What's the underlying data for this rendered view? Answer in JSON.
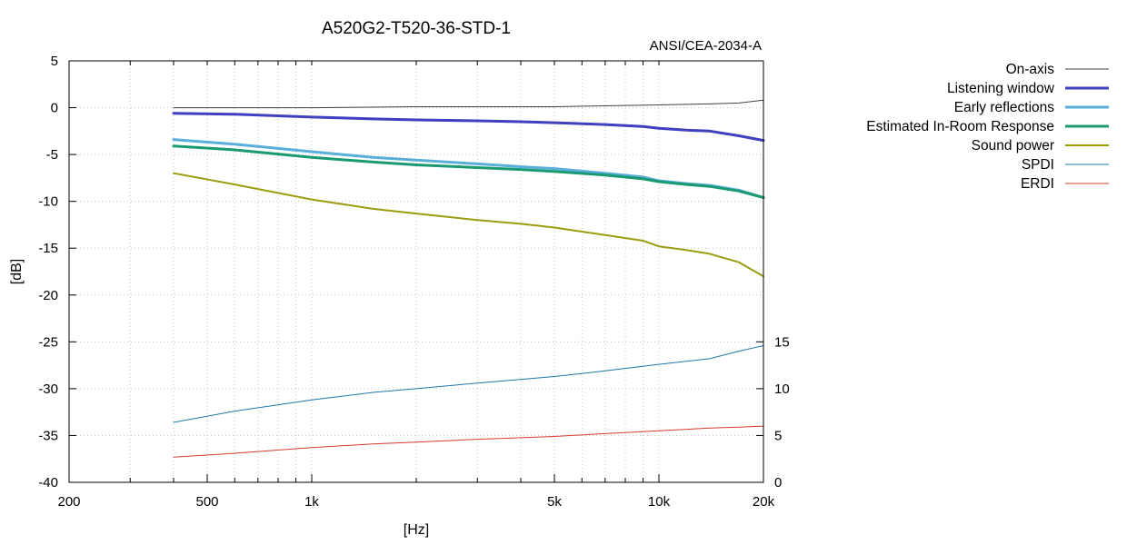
{
  "chart_data": {
    "type": "line",
    "title": "A520G2-T520-36-STD-1",
    "subtitle": "ANSI/CEA-2034-A",
    "xlabel": "[Hz]",
    "ylabel": "[dB]",
    "xscale": "log",
    "xlim": [
      200,
      20000
    ],
    "ylim": [
      -40,
      5
    ],
    "y2lim": [
      0,
      45
    ],
    "grid": true,
    "legend_position": "right",
    "x_ticks": [
      {
        "value": 200,
        "label": "200"
      },
      {
        "value": 500,
        "label": "500"
      },
      {
        "value": 1000,
        "label": "1k"
      },
      {
        "value": 5000,
        "label": "5k"
      },
      {
        "value": 10000,
        "label": "10k"
      },
      {
        "value": 20000,
        "label": "20k"
      }
    ],
    "y_ticks": [
      {
        "value": 5,
        "label": "5"
      },
      {
        "value": 0,
        "label": "0"
      },
      {
        "value": -5,
        "label": "-5"
      },
      {
        "value": -10,
        "label": "-10"
      },
      {
        "value": -15,
        "label": "-15"
      },
      {
        "value": -20,
        "label": "-20"
      },
      {
        "value": -25,
        "label": "-25"
      },
      {
        "value": -30,
        "label": "-30"
      },
      {
        "value": -35,
        "label": "-35"
      },
      {
        "value": -40,
        "label": "-40"
      }
    ],
    "y2_ticks": [
      {
        "value": 15,
        "label": "15"
      },
      {
        "value": 10,
        "label": "10"
      },
      {
        "value": 5,
        "label": "5"
      },
      {
        "value": 0,
        "label": "0"
      }
    ],
    "series": [
      {
        "name": "On-axis",
        "color": "#404040",
        "width": 1,
        "axis": "y",
        "x": [
          400,
          600,
          1000,
          2000,
          3000,
          5000,
          7000,
          10000,
          14000,
          17000,
          20000
        ],
        "y": [
          0.0,
          0.0,
          0.0,
          0.1,
          0.1,
          0.1,
          0.2,
          0.3,
          0.4,
          0.5,
          0.8
        ]
      },
      {
        "name": "Listening window",
        "color": "#3f3fbf",
        "width": 3,
        "axis": "y",
        "x": [
          400,
          600,
          1000,
          1500,
          2000,
          3000,
          4000,
          5000,
          7000,
          9000,
          10000,
          12000,
          14000,
          17000,
          20000
        ],
        "y": [
          -0.6,
          -0.7,
          -1.0,
          -1.2,
          -1.3,
          -1.4,
          -1.5,
          -1.6,
          -1.8,
          -2.0,
          -2.2,
          -2.4,
          -2.5,
          -3.0,
          -3.5
        ]
      },
      {
        "name": "Early reflections",
        "color": "#5aaedc",
        "width": 3,
        "axis": "y",
        "x": [
          400,
          600,
          1000,
          1500,
          2000,
          3000,
          4000,
          5000,
          7000,
          9000,
          10000,
          12000,
          14000,
          17000,
          20000
        ],
        "y": [
          -3.4,
          -3.9,
          -4.7,
          -5.3,
          -5.6,
          -6.0,
          -6.3,
          -6.5,
          -7.0,
          -7.4,
          -7.8,
          -8.1,
          -8.3,
          -8.8,
          -9.6
        ]
      },
      {
        "name": "Estimated In-Room Response",
        "color": "#1a9a73",
        "width": 3,
        "axis": "y",
        "x": [
          400,
          600,
          1000,
          1500,
          2000,
          3000,
          4000,
          5000,
          7000,
          9000,
          10000,
          12000,
          14000,
          17000,
          20000
        ],
        "y": [
          -4.1,
          -4.5,
          -5.3,
          -5.8,
          -6.1,
          -6.4,
          -6.6,
          -6.8,
          -7.2,
          -7.6,
          -7.9,
          -8.2,
          -8.4,
          -8.9,
          -9.6
        ]
      },
      {
        "name": "Sound power",
        "color": "#9c9c10",
        "width": 2,
        "axis": "y",
        "x": [
          400,
          600,
          1000,
          1500,
          2000,
          3000,
          4000,
          5000,
          7000,
          9000,
          10000,
          12000,
          14000,
          17000,
          20000
        ],
        "y": [
          -7.0,
          -8.2,
          -9.8,
          -10.8,
          -11.3,
          -12.0,
          -12.4,
          -12.8,
          -13.6,
          -14.2,
          -14.8,
          -15.2,
          -15.6,
          -16.5,
          -18.0
        ]
      },
      {
        "name": "SPDI",
        "color": "#1f78a8",
        "width": 1,
        "axis": "y2",
        "x": [
          400,
          600,
          1000,
          1500,
          2000,
          3000,
          5000,
          7000,
          10000,
          14000,
          17000,
          20000
        ],
        "y": [
          6.4,
          7.6,
          8.8,
          9.6,
          10.0,
          10.6,
          11.3,
          11.9,
          12.6,
          13.2,
          14.0,
          14.6
        ]
      },
      {
        "name": "ERDI",
        "color": "#d83a2e",
        "width": 1,
        "axis": "y2",
        "x": [
          400,
          600,
          1000,
          1500,
          2000,
          3000,
          5000,
          7000,
          10000,
          14000,
          17000,
          20000
        ],
        "y": [
          2.7,
          3.1,
          3.7,
          4.1,
          4.3,
          4.6,
          4.9,
          5.2,
          5.5,
          5.8,
          5.9,
          6.0
        ]
      }
    ]
  }
}
